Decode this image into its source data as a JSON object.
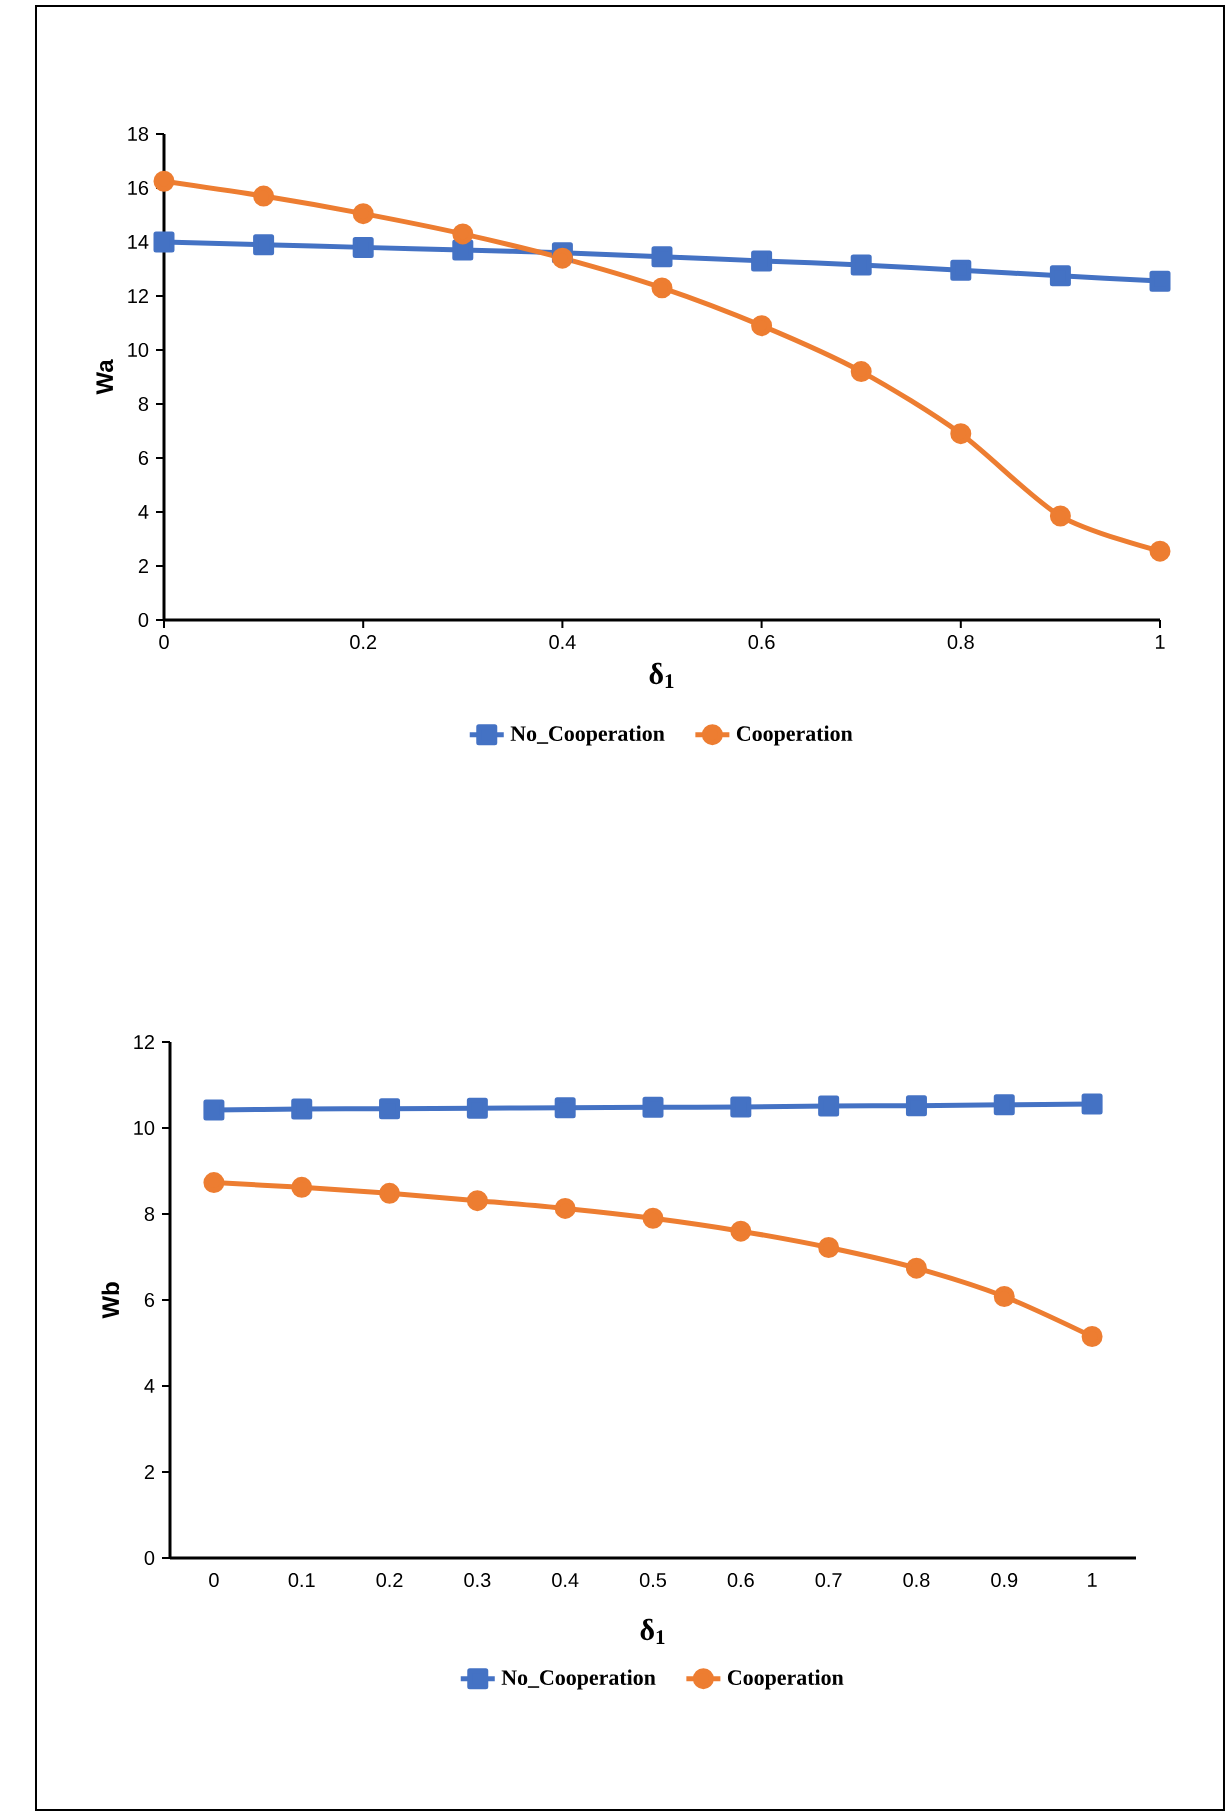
{
  "chart_data": [
    {
      "type": "line",
      "ylabel": "Wa",
      "xlabel": "δ$_{1}$",
      "x": [
        0,
        0.1,
        0.2,
        0.3,
        0.4,
        0.5,
        0.6,
        0.7,
        0.8,
        0.9,
        1
      ],
      "xlim": [
        0,
        1
      ],
      "xticks": [
        0,
        0.2,
        0.4,
        0.6,
        0.8,
        1
      ],
      "ylim": [
        0,
        18
      ],
      "yticks": [
        0,
        2,
        4,
        6,
        8,
        10,
        12,
        14,
        16,
        18
      ],
      "legend": "bottom",
      "series": [
        {
          "name": "No_Cooperation",
          "color": "#4472c4",
          "marker": "square",
          "values": [
            14.0,
            13.9,
            13.8,
            13.7,
            13.6,
            13.45,
            13.3,
            13.15,
            12.95,
            12.75,
            12.55
          ]
        },
        {
          "name": "Cooperation",
          "color": "#ed7d31",
          "marker": "circle",
          "values": [
            16.25,
            15.7,
            15.05,
            14.3,
            13.4,
            12.3,
            10.9,
            9.2,
            6.9,
            3.85,
            2.55
          ]
        }
      ]
    },
    {
      "type": "line",
      "ylabel": "Wb",
      "xlabel": "δ$_{1}$",
      "categories": [
        "0",
        "0.1",
        "0.2",
        "0.3",
        "0.4",
        "0.5",
        "0.6",
        "0.7",
        "0.8",
        "0.9",
        "1"
      ],
      "ylim": [
        0,
        12
      ],
      "yticks": [
        0,
        2,
        4,
        6,
        8,
        10,
        12
      ],
      "legend": "bottom",
      "series": [
        {
          "name": "No_Cooperation",
          "color": "#4472c4",
          "marker": "square",
          "values": [
            10.42,
            10.44,
            10.45,
            10.46,
            10.47,
            10.48,
            10.49,
            10.51,
            10.52,
            10.54,
            10.56
          ]
        },
        {
          "name": "Cooperation",
          "color": "#ed7d31",
          "marker": "circle",
          "values": [
            8.73,
            8.62,
            8.48,
            8.31,
            8.13,
            7.9,
            7.6,
            7.22,
            6.74,
            6.08,
            5.15
          ]
        }
      ]
    }
  ]
}
